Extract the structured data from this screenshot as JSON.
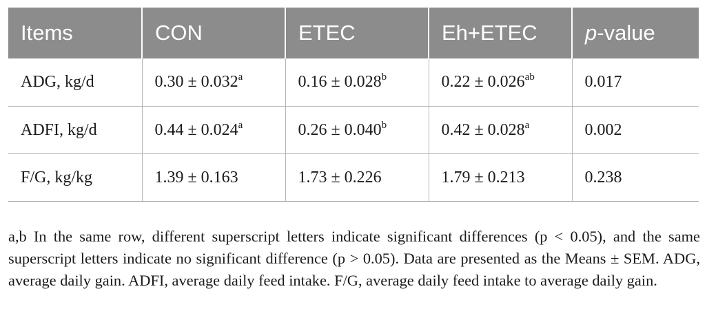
{
  "table": {
    "headers": {
      "items": "Items",
      "con": "CON",
      "etec": "ETEC",
      "eh_etec": "Eh+ETEC",
      "p_italic": "p",
      "p_rest": "-value"
    },
    "rows": [
      {
        "item": "ADG, kg/d",
        "con": {
          "value": "0.30 ± 0.032",
          "sup": "a"
        },
        "etec": {
          "value": "0.16 ± 0.028",
          "sup": "b"
        },
        "eh_etec": {
          "value": "0.22 ± 0.026",
          "sup": "ab"
        },
        "p": "0.017"
      },
      {
        "item": "ADFI, kg/d",
        "con": {
          "value": "0.44 ± 0.024",
          "sup": "a"
        },
        "etec": {
          "value": "0.26 ± 0.040",
          "sup": "b"
        },
        "eh_etec": {
          "value": "0.42 ± 0.028",
          "sup": "a"
        },
        "p": "0.002"
      },
      {
        "item": "F/G, kg/kg",
        "con": {
          "value": "1.39 ± 0.163",
          "sup": ""
        },
        "etec": {
          "value": "1.73 ± 0.226",
          "sup": ""
        },
        "eh_etec": {
          "value": "1.79 ± 0.213",
          "sup": ""
        },
        "p": "0.238"
      }
    ]
  },
  "footnote": "a,b In the same row, different superscript letters indicate significant differences (p < 0.05), and the same superscript letters indicate no significant difference (p > 0.05). Data are presented as the Means ± SEM.  ADG, average daily gain. ADFI, average daily feed intake. F/G, average daily feed intake to average daily gain.",
  "colors": {
    "header_bg": "#8c8c8c",
    "header_text": "#ffffff",
    "grid_line": "#b5b5b5"
  }
}
